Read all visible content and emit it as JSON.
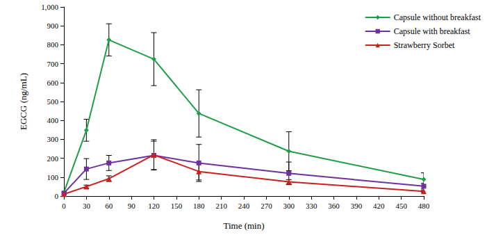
{
  "chart_data": {
    "type": "line",
    "x_label": "Time (min)",
    "y_label": "EGCG (ng/mL)",
    "x": [
      0,
      30,
      60,
      120,
      180,
      300,
      480
    ],
    "series": [
      {
        "name": "Capsule without breakfast",
        "color": "#1E9E46",
        "marker": "diamond",
        "line_style": "solid",
        "values": [
          20,
          348,
          826,
          724,
          437,
          237,
          88
        ],
        "errors": [
          5,
          58,
          85,
          140,
          125,
          103,
          35
        ]
      },
      {
        "name": "Capsule with breakfast",
        "color": "#7030A0",
        "marker": "square",
        "line_style": "solid",
        "values": [
          15,
          143,
          175,
          215,
          175,
          120,
          52
        ],
        "errors": [
          4,
          55,
          40,
          75,
          98,
          60,
          15
        ]
      },
      {
        "name": "Strawberry Sorbet",
        "color": "#CC1F1F",
        "marker": "triangle",
        "line_style": "solid",
        "values": [
          10,
          50,
          92,
          218,
          130,
          75,
          25
        ],
        "errors": [
          3,
          8,
          15,
          80,
          45,
          12,
          5
        ]
      }
    ],
    "xlim": [
      0,
      480
    ],
    "xticks": [
      0,
      30,
      60,
      90,
      120,
      150,
      180,
      210,
      240,
      270,
      300,
      330,
      360,
      390,
      420,
      450,
      480
    ],
    "ylim": [
      0,
      1000
    ],
    "yticks": [
      0,
      100,
      200,
      300,
      400,
      500,
      600,
      700,
      800,
      900,
      1000
    ],
    "grid": false,
    "legend": "upper right"
  }
}
